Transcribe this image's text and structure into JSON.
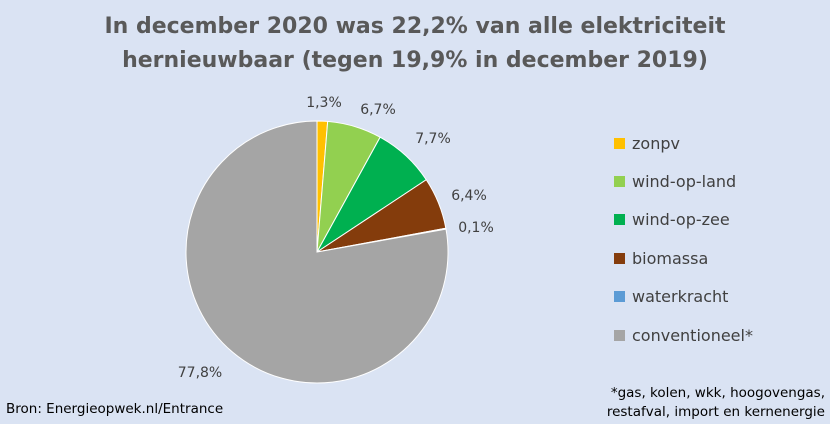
{
  "title_line1": "In december 2020 was 22,2% van alle elektriciteit",
  "title_line2": "hernieuwbaar (tegen 19,9% in december 2019)",
  "source": "Bron: Energieopwek.nl/Entrance",
  "footnote_line1": "*gas, kolen, wkk, hoogovengas,",
  "footnote_line2": "restafval, import en kernenergie",
  "chart_data": {
    "type": "pie",
    "slices": [
      {
        "name": "zonpv",
        "value": 1.3,
        "label": "1,3%",
        "color": "#ffc000"
      },
      {
        "name": "wind-op-land",
        "value": 6.7,
        "label": "6,7%",
        "color": "#92d050"
      },
      {
        "name": "wind-op-zee",
        "value": 7.7,
        "label": "7,7%",
        "color": "#00b050"
      },
      {
        "name": "biomassa",
        "value": 6.4,
        "label": "6,4%",
        "color": "#843c0c"
      },
      {
        "name": "waterkracht",
        "value": 0.1,
        "label": "0,1%",
        "color": "#5b9bd5"
      },
      {
        "name": "conventioneel*",
        "value": 77.8,
        "label": "77,8%",
        "color": "#a5a5a5"
      }
    ],
    "legend_position": "right"
  }
}
